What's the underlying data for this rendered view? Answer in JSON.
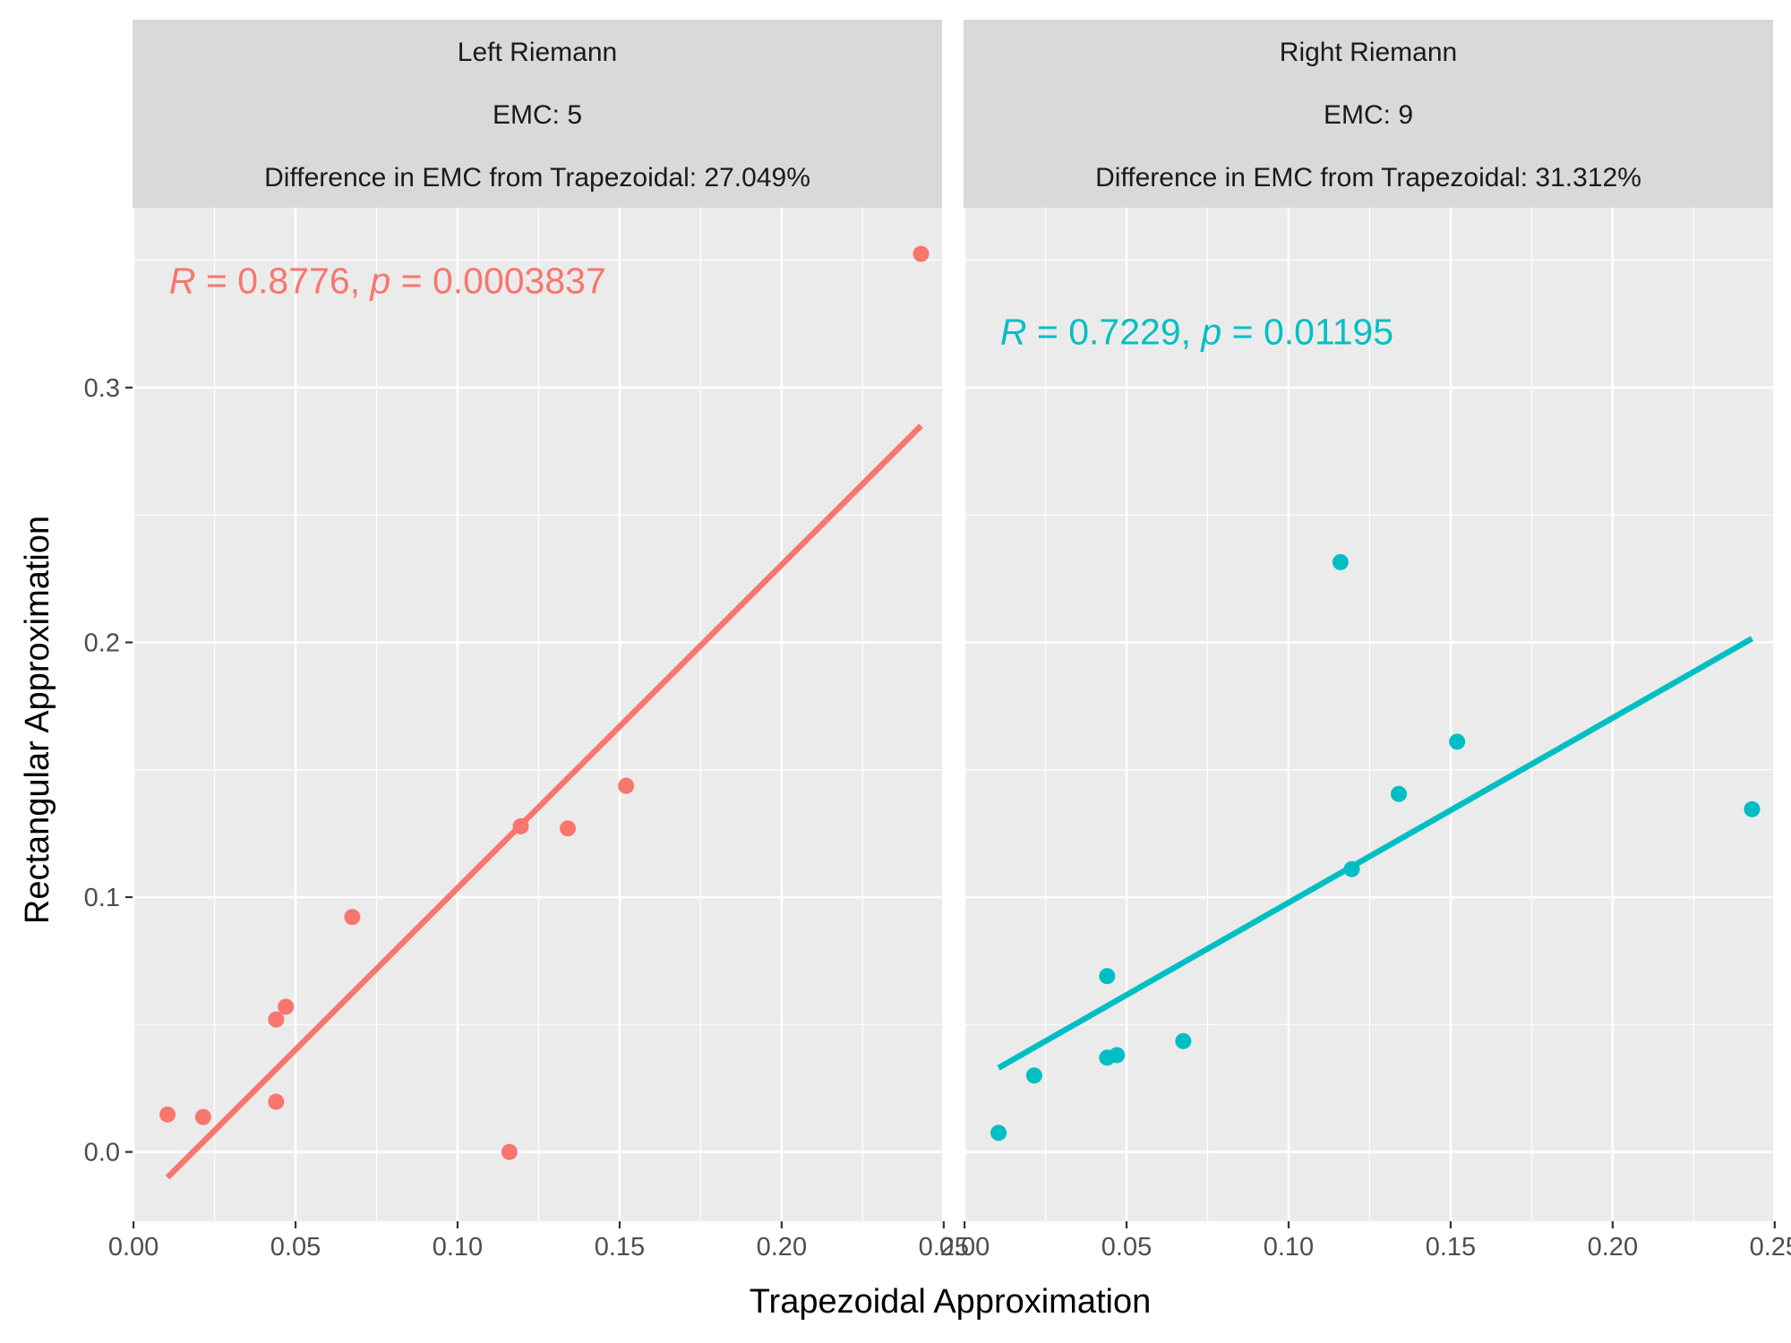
{
  "chart_data": {
    "type": "scatter",
    "xlabel": "Trapezoidal Approximation",
    "ylabel": "Rectangular Approximation",
    "xlim": [
      -0.0003,
      0.2495
    ],
    "ylim": [
      -0.0272,
      0.3706
    ],
    "x_ticks": [
      0.0,
      0.05,
      0.1,
      0.15,
      0.2,
      0.25
    ],
    "x_tick_labels": [
      "0.00",
      "0.05",
      "0.10",
      "0.15",
      "0.20",
      "0.25"
    ],
    "y_ticks": [
      0.0,
      0.1,
      0.2,
      0.3
    ],
    "y_tick_labels": [
      "0.0",
      "0.1",
      "0.2",
      "0.3"
    ],
    "grid": true,
    "legend": "none",
    "panels": [
      {
        "strip": [
          "Left Riemann",
          "EMC: 5",
          "Difference in EMC from Trapezoidal: 27.049%"
        ],
        "color": "#F8766D",
        "annotation": {
          "r_label": "R",
          "r_value": " = 0.8776, ",
          "p_label": "p",
          "p_value": " = 0.0003837",
          "x": 0.011,
          "y": 0.337
        },
        "points": [
          {
            "x": 0.0105,
            "y": 0.0147
          },
          {
            "x": 0.0215,
            "y": 0.0137
          },
          {
            "x": 0.044,
            "y": 0.052
          },
          {
            "x": 0.044,
            "y": 0.0197
          },
          {
            "x": 0.047,
            "y": 0.057
          },
          {
            "x": 0.0675,
            "y": 0.0922
          },
          {
            "x": 0.116,
            "y": 0.0
          },
          {
            "x": 0.1195,
            "y": 0.1278
          },
          {
            "x": 0.134,
            "y": 0.127
          },
          {
            "x": 0.152,
            "y": 0.1437
          },
          {
            "x": 0.243,
            "y": 0.3525
          }
        ],
        "fit": [
          {
            "x": 0.0105,
            "y": -0.01
          },
          {
            "x": 0.243,
            "y": 0.285
          }
        ]
      },
      {
        "strip": [
          "Right Riemann",
          "EMC: 9",
          "Difference in EMC from Trapezoidal: 31.312%"
        ],
        "color": "#00BFC4",
        "annotation": {
          "r_label": "R",
          "r_value": " = 0.7229, ",
          "p_label": "p",
          "p_value": " = 0.01195",
          "x": 0.011,
          "y": 0.317
        },
        "points": [
          {
            "x": 0.0105,
            "y": 0.0075
          },
          {
            "x": 0.0215,
            "y": 0.03
          },
          {
            "x": 0.044,
            "y": 0.069
          },
          {
            "x": 0.044,
            "y": 0.037
          },
          {
            "x": 0.047,
            "y": 0.038
          },
          {
            "x": 0.0675,
            "y": 0.0435
          },
          {
            "x": 0.116,
            "y": 0.2315
          },
          {
            "x": 0.1195,
            "y": 0.111
          },
          {
            "x": 0.134,
            "y": 0.1405
          },
          {
            "x": 0.152,
            "y": 0.161
          },
          {
            "x": 0.243,
            "y": 0.1345
          }
        ],
        "fit": [
          {
            "x": 0.0105,
            "y": 0.033
          },
          {
            "x": 0.243,
            "y": 0.2015
          }
        ]
      }
    ]
  }
}
